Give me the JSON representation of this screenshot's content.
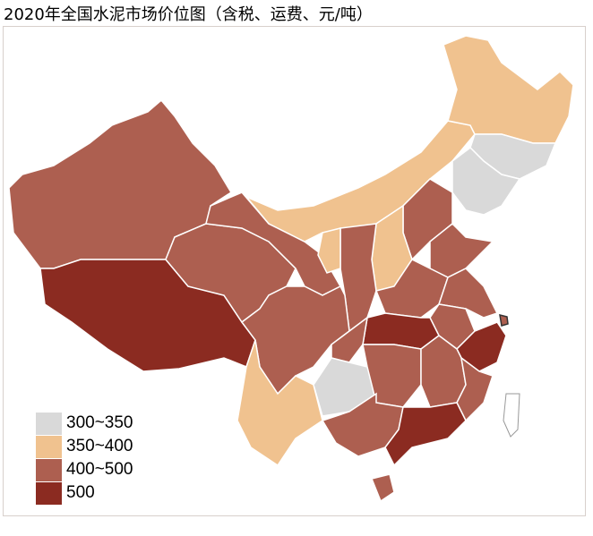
{
  "title": "2020年全国水泥市场价位图（含税、运费、元/吨）",
  "legend": [
    {
      "label": "300~350",
      "color": "#d9d9d9"
    },
    {
      "label": "350~400",
      "color": "#f0c28f"
    },
    {
      "label": "400~500",
      "color": "#ad5f50"
    },
    {
      "label": "500",
      "color": "#8b2b21"
    }
  ],
  "provinces": [
    {
      "name": "新疆",
      "category": "400~500"
    },
    {
      "name": "西藏",
      "category": "500"
    },
    {
      "name": "青海",
      "category": "400~500"
    },
    {
      "name": "甘肃",
      "category": "400~500"
    },
    {
      "name": "内蒙古",
      "category": "350~400"
    },
    {
      "name": "黑龙江",
      "category": "350~400"
    },
    {
      "name": "吉林",
      "category": "300~350"
    },
    {
      "name": "辽宁",
      "category": "300~350"
    },
    {
      "name": "河北",
      "category": "400~500"
    },
    {
      "name": "山西",
      "category": "350~400"
    },
    {
      "name": "陕西",
      "category": "400~500"
    },
    {
      "name": "宁夏",
      "category": "350~400"
    },
    {
      "name": "山东",
      "category": "400~500"
    },
    {
      "name": "河南",
      "category": "400~500"
    },
    {
      "name": "江苏",
      "category": "400~500"
    },
    {
      "name": "安徽",
      "category": "400~500"
    },
    {
      "name": "上海",
      "category": "400~500"
    },
    {
      "name": "浙江",
      "category": "500"
    },
    {
      "name": "湖北",
      "category": "500"
    },
    {
      "name": "四川",
      "category": "400~500"
    },
    {
      "name": "重庆",
      "category": "400~500"
    },
    {
      "name": "云南",
      "category": "350~400"
    },
    {
      "name": "贵州",
      "category": "300~350"
    },
    {
      "name": "湖南",
      "category": "400~500"
    },
    {
      "name": "江西",
      "category": "400~500"
    },
    {
      "name": "福建",
      "category": "400~500"
    },
    {
      "name": "广西",
      "category": "400~500"
    },
    {
      "name": "广东",
      "category": "500"
    },
    {
      "name": "海南",
      "category": "400~500"
    },
    {
      "name": "台湾",
      "category": "none"
    }
  ]
}
